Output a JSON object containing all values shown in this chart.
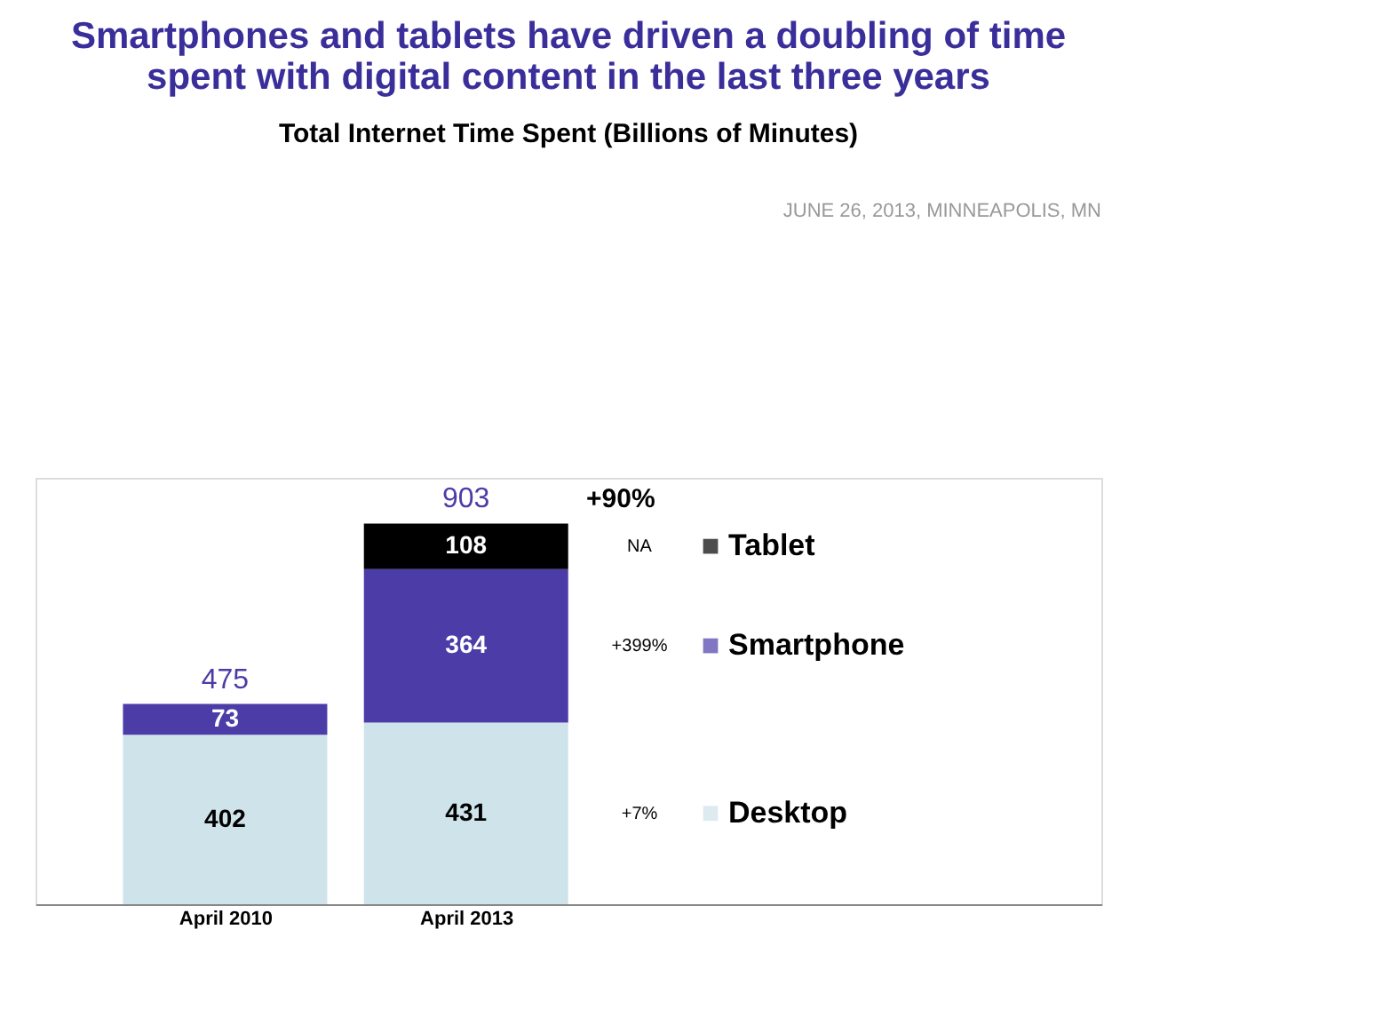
{
  "chart_data": {
    "type": "bar",
    "stacked": true,
    "data_labels": true,
    "legend": "right",
    "title": "Smartphones and tablets have driven a doubling of time spent with digital content in the last three years",
    "subtitle": "Total Internet Time Spent  (Billions of Minutes)",
    "categories": [
      "April 2010",
      "April 2013"
    ],
    "series": [
      {
        "name": "Desktop",
        "color": "#cfe3ea",
        "values": [
          402,
          431
        ]
      },
      {
        "name": "Smartphone",
        "color": "#4b3ca8",
        "values": [
          73,
          364
        ]
      },
      {
        "name": "Tablet",
        "color": "#000000",
        "values": [
          null,
          108
        ]
      }
    ],
    "totals": [
      "475",
      "903"
    ],
    "annotations": [
      "JUNE 26, 2013, MINNEAPOLIS, MN",
      "+90%",
      "+7%",
      "+399%",
      "NA"
    ]
  }
}
